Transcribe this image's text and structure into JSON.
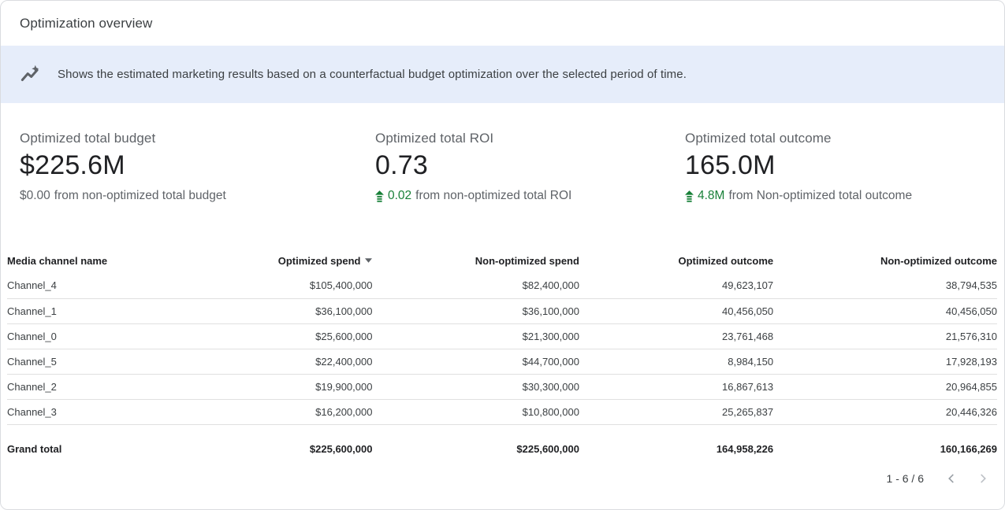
{
  "header": {
    "title": "Optimization overview"
  },
  "banner": {
    "icon": "insights-icon",
    "text": "Shows the estimated marketing results based on a counterfactual budget optimization over the selected period of time."
  },
  "kpis": [
    {
      "label": "Optimized total budget",
      "value": "$225.6M",
      "delta_value": "$0.00",
      "delta_text": "from non-optimized total budget",
      "delta_positive": false
    },
    {
      "label": "Optimized total ROI",
      "value": "0.73",
      "delta_value": "0.02",
      "delta_text": "from non-optimized total ROI",
      "delta_positive": true
    },
    {
      "label": "Optimized total outcome",
      "value": "165.0M",
      "delta_value": "4.8M",
      "delta_text": "from Non-optimized total outcome",
      "delta_positive": true
    }
  ],
  "table": {
    "columns": [
      "Media channel name",
      "Optimized spend",
      "Non-optimized spend",
      "Optimized outcome",
      "Non-optimized outcome"
    ],
    "sort": {
      "column": "Optimized spend",
      "direction": "desc"
    },
    "rows": [
      [
        "Channel_4",
        "$105,400,000",
        "$82,400,000",
        "49,623,107",
        "38,794,535"
      ],
      [
        "Channel_1",
        "$36,100,000",
        "$36,100,000",
        "40,456,050",
        "40,456,050"
      ],
      [
        "Channel_0",
        "$25,600,000",
        "$21,300,000",
        "23,761,468",
        "21,576,310"
      ],
      [
        "Channel_5",
        "$22,400,000",
        "$44,700,000",
        "8,984,150",
        "17,928,193"
      ],
      [
        "Channel_2",
        "$19,900,000",
        "$30,300,000",
        "16,867,613",
        "20,964,855"
      ],
      [
        "Channel_3",
        "$16,200,000",
        "$10,800,000",
        "25,265,837",
        "20,446,326"
      ]
    ],
    "grand_total": {
      "label": "Grand total",
      "values": [
        "$225,600,000",
        "$225,600,000",
        "164,958,226",
        "160,166,269"
      ]
    }
  },
  "pagination": {
    "range_label": "1 - 6 / 6",
    "prev_icon": "chevron-left-icon",
    "next_icon": "chevron-right-icon"
  },
  "colors": {
    "banner_bg": "#e6edfa",
    "positive_green": "#188038",
    "text_primary": "#202124",
    "text_secondary": "#5f6368",
    "divider": "#e0e0e0",
    "card_border": "#dadce0"
  }
}
